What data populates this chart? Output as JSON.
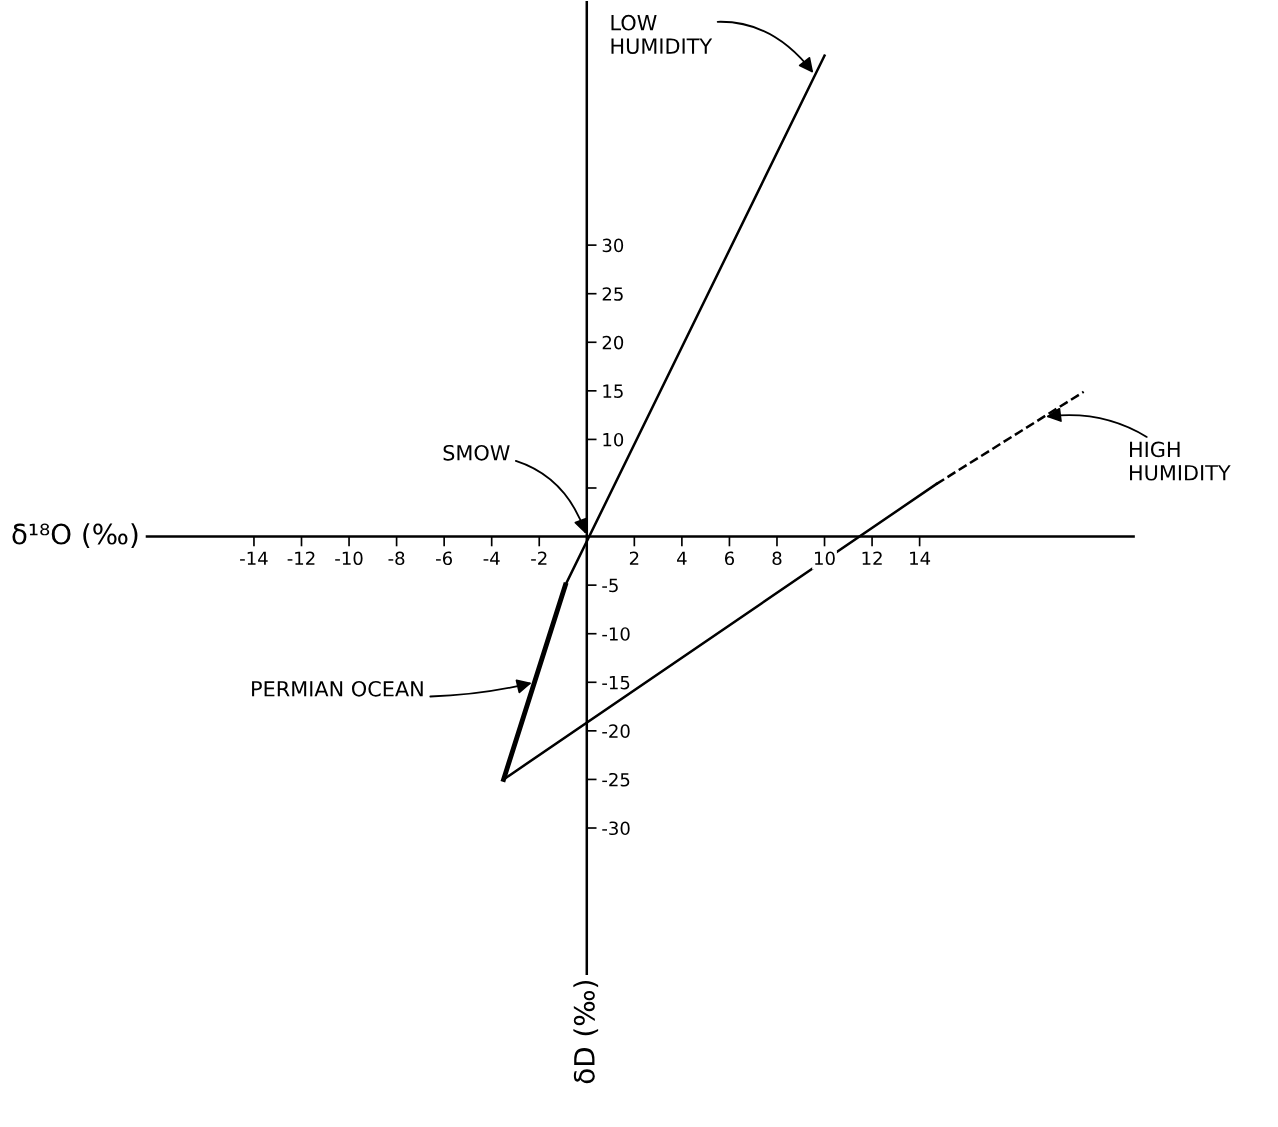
{
  "chart_data": {
    "type": "line",
    "xlabel": "δ¹⁸O (‰)",
    "ylabel": "δD (‰)",
    "xlim": [
      -18.5,
      23
    ],
    "ylim": [
      -45,
      55
    ],
    "xticks": [
      -14,
      -12,
      -10,
      -8,
      -6,
      -4,
      -2,
      2,
      4,
      6,
      8,
      10,
      12,
      14
    ],
    "yticks": [
      -30,
      -25,
      -20,
      -15,
      -10,
      -5,
      {
        "value": 5,
        "label": null
      },
      10,
      15,
      20,
      25,
      30
    ],
    "grid": false,
    "legend": false,
    "marker": "none",
    "series": [
      {
        "color": "#000000",
        "x": [
          -0.9,
          10.0
        ],
        "values": [
          -5,
          49.5
        ],
        "line_style": "solid"
      },
      {
        "color": "#000000",
        "x": [
          -3.5,
          -0.9
        ],
        "values": [
          -25,
          -5
        ],
        "line_style": "solid"
      },
      {
        "color": "#000000",
        "x": [
          -3.5,
          14.7
        ],
        "values": [
          -25,
          5.4
        ],
        "line_style": "solid"
      },
      {
        "color": "#000000",
        "x": [
          14.7,
          20.9
        ],
        "values": [
          5.4,
          14.9
        ],
        "line_style": "dashed"
      }
    ],
    "annotations": [
      {
        "text": "SMOW",
        "x": 0,
        "y": 0
      },
      {
        "text": "LOW\nHUMIDITY",
        "x": 9.6,
        "y": 47.5
      },
      {
        "text": "HIGH\nHUMIDITY",
        "x": 19.2,
        "y": 12.3
      },
      {
        "text": "PERMIAN OCEAN",
        "x": -2.2,
        "y": -15
      }
    ]
  }
}
